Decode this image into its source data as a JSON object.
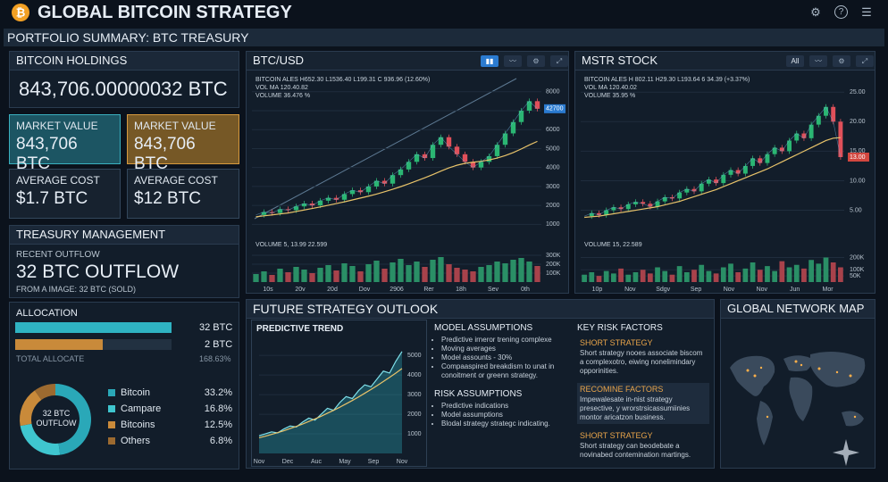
{
  "header": {
    "title": "GLOBAL BITCOIN STRATEGY",
    "subtitle": "PORTFOLIO SUMMARY: BTC TREASURY"
  },
  "holdings": {
    "title": "BITCOIN HOLDINGS",
    "value": "843,706.00000032 BTC"
  },
  "cards": [
    {
      "label": "MARKET VALUE",
      "value": "843,706 BTC"
    },
    {
      "label": "MARKET VALUE",
      "value": "843,706 BTC"
    },
    {
      "label": "AVERAGE COST",
      "value": "$1.7 BTC"
    },
    {
      "label": "AVERAGE COST",
      "value": "$12 BTC"
    }
  ],
  "treasury": {
    "title": "TREASURY MANAGEMENT",
    "label": "RECENT OUTFLOW",
    "value": "32 BTC OUTFLOW",
    "note": "FROM A IMAGE: 32 BTC (SOLD)"
  },
  "allocation": {
    "title": "ALLOCATION",
    "bars": [
      "32 BTC",
      "2 BTC"
    ],
    "total_label": "TOTAL ALLOCATE",
    "total_value": "168.63%",
    "donut": {
      "center": "32 BTC OUTFLOW",
      "categories": [
        "Bitcoin",
        "Campare",
        "Bitcoins",
        "Others"
      ],
      "values": [
        33.2,
        16.8,
        12.5,
        6.8
      ],
      "value_labels": [
        "33.2%",
        "16.8%",
        "12.5%",
        "6.8%"
      ],
      "colors": [
        "#2aa8b8",
        "#3fc6cf",
        "#c98a3a",
        "#9c6a30"
      ]
    }
  },
  "btc": {
    "title": "BTC/USD",
    "info": [
      "BITCOIN ALES H652.30 L1536.40 L199.31 C 936.96 (12.60%)",
      "VOL MA 120.40.82",
      "VOLUME 36.476 %"
    ],
    "price_tag": "42700",
    "volume_label": "VOLUME 5, 13.99 22.599",
    "categories": [
      "10s",
      "20v",
      "20d",
      "Dov",
      "2906",
      "Rer",
      "18h",
      "Sev",
      "0th"
    ],
    "ylim": [
      500,
      8600
    ],
    "yticks": [
      8000,
      7000,
      6000,
      5000,
      4000,
      3000,
      2000,
      1000
    ],
    "close": [
      1500,
      1650,
      1600,
      1800,
      1750,
      1950,
      2100,
      2000,
      2250,
      2400,
      2300,
      2600,
      2800,
      2700,
      3000,
      3300,
      3150,
      3600,
      3900,
      4300,
      4700,
      4500,
      5200,
      5600,
      5100,
      4700,
      4300,
      4000,
      4300,
      4600,
      5200,
      5800,
      6400,
      7000,
      7500,
      7100
    ],
    "ma": [
      1400,
      1450,
      1500,
      1550,
      1600,
      1680,
      1760,
      1840,
      1920,
      2010,
      2100,
      2190,
      2290,
      2390,
      2490,
      2600,
      2720,
      2850,
      2990,
      3140,
      3300,
      3460,
      3630,
      3810,
      3980,
      4120,
      4220,
      4280,
      4330,
      4400,
      4500,
      4630,
      4790,
      4980,
      5190,
      5380
    ],
    "vlim": [
      0,
      330000
    ],
    "vticks": [
      {
        "value": 300000,
        "label": "300K"
      },
      {
        "value": 200000,
        "label": "200K"
      },
      {
        "value": 100000,
        "label": "100K"
      }
    ],
    "volume": [
      90000,
      120000,
      80000,
      150000,
      110000,
      170000,
      140000,
      100000,
      160000,
      190000,
      130000,
      210000,
      180000,
      120000,
      200000,
      240000,
      150000,
      220000,
      260000,
      190000,
      230000,
      170000,
      250000,
      280000,
      200000,
      160000,
      140000,
      120000,
      170000,
      190000,
      230000,
      210000,
      250000,
      270000,
      230000,
      180000
    ]
  },
  "mstr": {
    "title": "MSTR STOCK",
    "range_button": "All",
    "info": [
      "BITCOIN ALES H 802.11 H29.30 L193.64 6 34.39 (+3.37%)",
      "VOL MA 120.40.02",
      "VOLUME 35.95 %"
    ],
    "price_tag": "13.00",
    "volume_label": "VOLUME 15, 22.589",
    "categories": [
      "10p",
      "Nov",
      "Sdgv",
      "Sep",
      "Nov",
      "Nov",
      "Jun",
      "Mor"
    ],
    "ylim": [
      1,
      27
    ],
    "yticks": [
      {
        "value": 25,
        "label": "25.00"
      },
      {
        "value": 20,
        "label": "20.00"
      },
      {
        "value": 15,
        "label": "15.00"
      },
      {
        "value": 10,
        "label": "10.00"
      },
      {
        "value": 5,
        "label": "5.00"
      }
    ],
    "close": [
      4,
      4.5,
      4.2,
      5,
      5.5,
      5.2,
      6,
      6.4,
      6.1,
      5.6,
      6.5,
      7.2,
      7,
      8,
      8.6,
      8.2,
      9.5,
      10.2,
      9.6,
      11,
      11.8,
      11.2,
      12.5,
      13.8,
      13,
      14.5,
      15.6,
      15,
      16.8,
      18,
      17.2,
      19.5,
      21,
      22.5,
      20,
      14
    ],
    "ma": [
      3.8,
      3.9,
      4,
      4.2,
      4.4,
      4.6,
      4.8,
      5,
      5.2,
      5.4,
      5.6,
      5.9,
      6.2,
      6.5,
      6.9,
      7.3,
      7.7,
      8.1,
      8.5,
      9,
      9.5,
      10,
      10.5,
      11,
      11.5,
      12,
      12.6,
      13.2,
      13.8,
      14.4,
      15,
      15.6,
      16.2,
      16.8,
      17.2,
      17.3
    ],
    "vlim": [
      0,
      240000
    ],
    "vticks": [
      {
        "value": 200000,
        "label": "200K"
      },
      {
        "value": 100000,
        "label": "100K"
      },
      {
        "value": 50000,
        "label": "50K"
      }
    ],
    "volume": [
      60000,
      80000,
      50000,
      90000,
      70000,
      110000,
      60000,
      80000,
      100000,
      70000,
      120000,
      90000,
      60000,
      130000,
      80000,
      100000,
      140000,
      90000,
      70000,
      120000,
      150000,
      80000,
      110000,
      160000,
      100000,
      130000,
      90000,
      170000,
      120000,
      140000,
      110000,
      180000,
      150000,
      200000,
      160000,
      120000
    ]
  },
  "outlook": {
    "title": "FUTURE STRATEGY OUTLOOK",
    "trend": {
      "title": "PREDICTIVE TREND",
      "categories": [
        "Nov",
        "Dec",
        "Auc",
        "May",
        "Sep",
        "Nov"
      ],
      "ylim": [
        0,
        5600
      ],
      "yticks": [
        5000,
        4000,
        3000,
        2000,
        1000
      ],
      "values": [
        900,
        1000,
        1100,
        1050,
        1250,
        1400,
        1350,
        1600,
        1800,
        1700,
        2000,
        2300,
        2200,
        2600,
        2900,
        2800,
        3200,
        3500,
        3400,
        3800,
        4200,
        4100,
        4700,
        5200
      ],
      "trend": [
        800,
        880,
        970,
        1060,
        1160,
        1270,
        1380,
        1500,
        1630,
        1760,
        1900,
        2050,
        2200,
        2360,
        2530,
        2700,
        2880,
        3070,
        3260,
        3460,
        3670,
        3880,
        4100,
        4330
      ]
    },
    "model": {
      "title": "MODEL ASSUMPTIONS",
      "items": [
        "Predictive irneror trening complexe",
        "Moving averages",
        "Model assounts - 30%",
        "Compaaspired breakdism to unat in conoitment or greenn strategy."
      ]
    },
    "risk": {
      "title": "RISK ASSUMPTIONS",
      "items": [
        "Predictive indications",
        "Model assumptions",
        "Blodal strategy strategc indicating."
      ]
    },
    "factors": {
      "title": "KEY RISK FACTORS",
      "items": [
        {
          "title": "SHORT STRATEGY",
          "text": "Short strategy nooes associate biscom a complexotro, eiwing nonelimindary opporinities."
        },
        {
          "title": "RECOMINE FACTORS",
          "text": "Impewalesate in-nist strategy presective, y wrorstrsicassumiinies montor aricatzon business."
        },
        {
          "title": "SHORT STRATEGY",
          "text": "Short strategy can beodebate a novinabed contemination martings."
        }
      ]
    }
  },
  "map": {
    "title": "GLOBAL NETWORK MAP"
  }
}
